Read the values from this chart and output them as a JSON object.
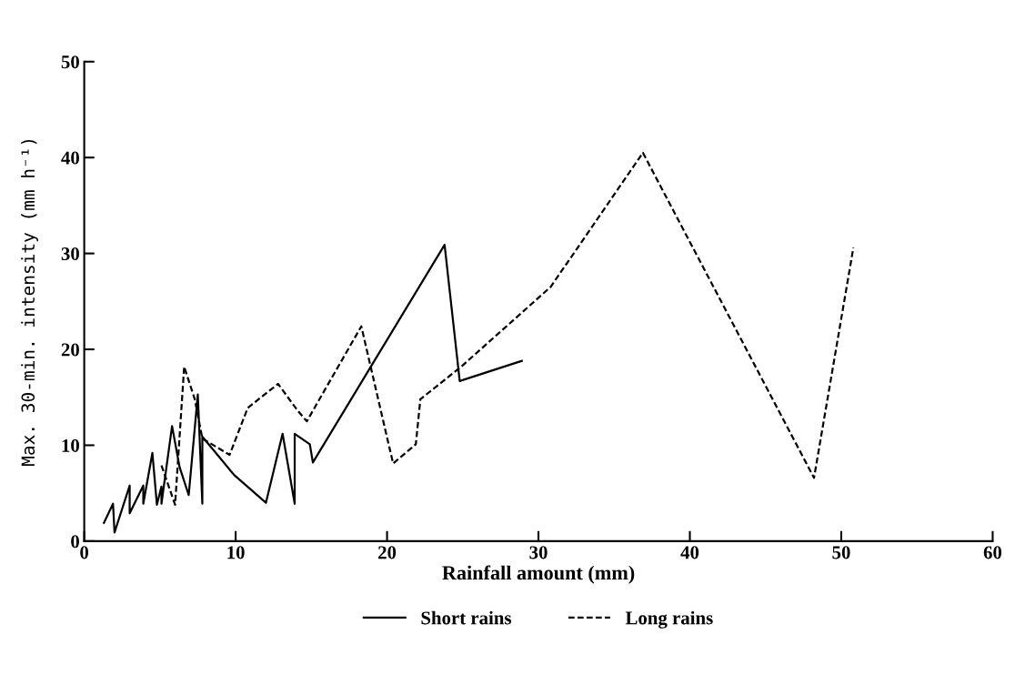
{
  "chart_data": {
    "type": "line",
    "xlabel": "Rainfall amount (mm)",
    "ylabel": "Max. 30-min. intensity (mm h⁻¹)",
    "xlim": [
      0,
      60
    ],
    "xticks": [
      0,
      10,
      20,
      30,
      40,
      50,
      60
    ],
    "ylim": [
      0,
      50
    ],
    "yticks": [
      0,
      10,
      20,
      30,
      40,
      50
    ],
    "grid": false,
    "legend": "bottom",
    "series": [
      {
        "name": "Short rains",
        "color": "#000000",
        "line_style": "solid",
        "x": [
          1.3,
          1.9,
          2.0,
          3.0,
          3.0,
          3.9,
          3.9,
          4.5,
          4.8,
          5.1,
          5.1,
          5.8,
          6.3,
          6.9,
          7.5,
          7.8,
          7.8,
          9.9,
          12.0,
          13.1,
          13.9,
          13.9,
          14.9,
          15.1,
          23.8,
          24.8,
          28.9
        ],
        "values": [
          1.9,
          3.9,
          0.9,
          5.8,
          2.9,
          5.8,
          3.9,
          9.2,
          3.8,
          5.7,
          3.9,
          12.0,
          7.7,
          4.8,
          15.3,
          3.9,
          10.9,
          6.9,
          4.0,
          11.2,
          3.9,
          11.2,
          10.1,
          8.2,
          30.9,
          16.7,
          18.8
        ]
      },
      {
        "name": "Long rains",
        "color": "#000000",
        "line_style": "dashed",
        "x": [
          5.1,
          6.0,
          6.6,
          7.3,
          7.8,
          9.6,
          10.8,
          12.8,
          14.1,
          14.7,
          18.3,
          20.4,
          21.9,
          22.2,
          24.9,
          30.8,
          36.9,
          48.2,
          50.8
        ],
        "values": [
          7.9,
          3.8,
          18.2,
          14.8,
          10.7,
          9.0,
          13.9,
          16.4,
          13.6,
          12.5,
          22.4,
          8.1,
          10.1,
          14.8,
          18.2,
          26.5,
          40.5,
          6.6,
          30.6
        ]
      }
    ]
  }
}
